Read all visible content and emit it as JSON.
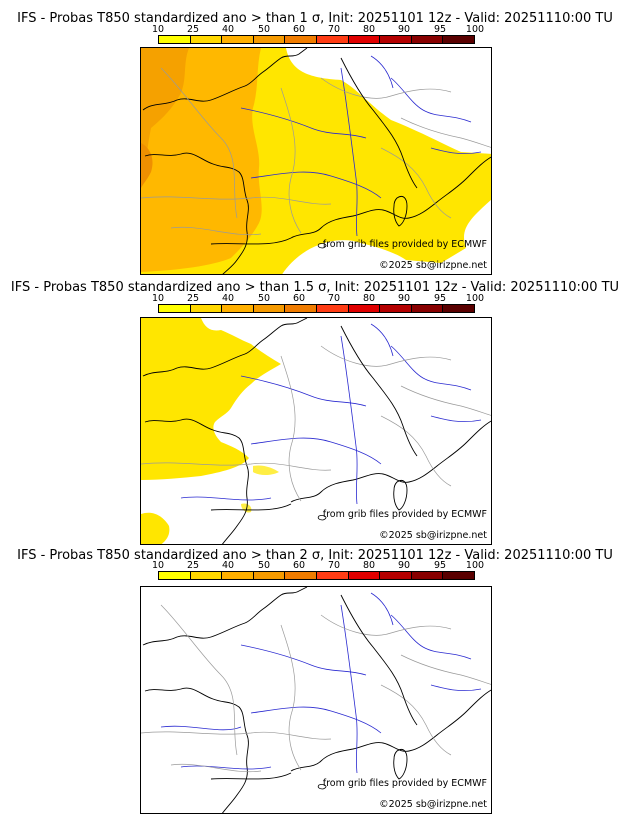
{
  "panels": [
    {
      "title": "IFS - Probas T850  standardized ano > than 1 σ, Init: 20251101 12z - Valid: 20251110:00 TU",
      "threshold_sigma": 1
    },
    {
      "title": "IFS - Probas T850  standardized ano > than 1.5 σ, Init: 20251101 12z - Valid: 20251110:00 TU",
      "threshold_sigma": 1.5
    },
    {
      "title": "IFS - Probas T850  standardized ano > than 2 σ, Init: 20251101 12z - Valid: 20251110:00 TU",
      "threshold_sigma": 2
    }
  ],
  "scale": {
    "labels": [
      "10",
      "25",
      "40",
      "50",
      "60",
      "70",
      "80",
      "90",
      "95",
      "100"
    ],
    "colors": [
      "#ffff00",
      "#ffd800",
      "#ffb000",
      "#f59a00",
      "#f07c00",
      "#ff3c14",
      "#e00000",
      "#b40000",
      "#880000",
      "#5a0000"
    ]
  },
  "credits": {
    "source": "from grib files provided by ECMWF",
    "copyright": "©2025 sb@irizpne.net"
  },
  "map_colors": {
    "coast": "#000000",
    "rivers": "#2222cc",
    "borders": "#9a9a9a",
    "prob_25": "#ffe000",
    "prob_40": "#ffb400",
    "prob_50": "#f5a000"
  }
}
